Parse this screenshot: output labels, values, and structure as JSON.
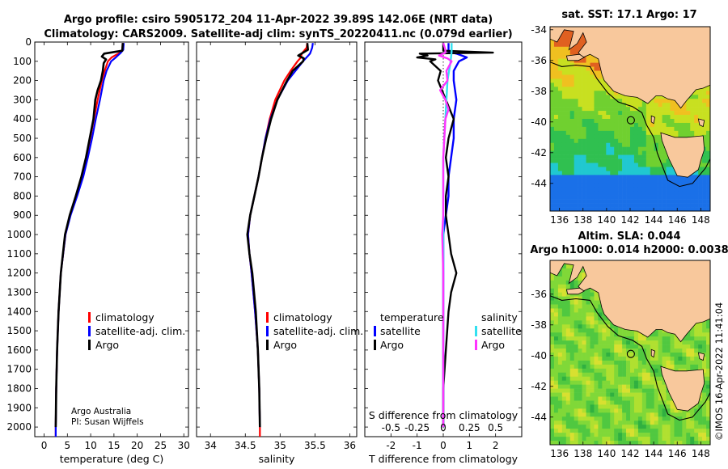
{
  "title_line1": "Argo profile: csiro 5905172_204 11-Apr-2022 39.89S 142.06E (NRT data)",
  "title_line2": "Climatology: CARS2009. Satellite-adj clim: synTS_20220411.nc (0.079d earlier)",
  "credit_line1": "Argo Australia",
  "credit_line2": "PI: Susan Wijffels",
  "watermark": "©IMOS 16-Apr-2022 11:41:04",
  "depth_ticks": [
    "0",
    "100",
    "200",
    "300",
    "400",
    "500",
    "600",
    "700",
    "800",
    "900",
    "1000",
    "1100",
    "1200",
    "1300",
    "1400",
    "1500",
    "1600",
    "1700",
    "1800",
    "1900",
    "2000"
  ],
  "colors": {
    "climatology": "#ff0000",
    "satellite": "#0000ff",
    "argo": "#000000",
    "sal_satellite": "#33e0f0",
    "sal_argo": "#ff33ff",
    "land": "#f8c89c"
  },
  "chart_data": [
    {
      "type": "line",
      "id": "temperature",
      "xlabel": "temperature (deg C)",
      "ylabel": "depth",
      "xlim": [
        -2,
        31
      ],
      "ylim": [
        2050,
        0
      ],
      "xticks": [
        0,
        5,
        10,
        15,
        20,
        25,
        30
      ],
      "xtick_labels": [
        "0",
        "5",
        "10",
        "15",
        "20",
        "25",
        "30"
      ],
      "legend": [
        "climatology",
        "satellite-adj. clim.",
        "Argo"
      ],
      "series": [
        {
          "name": "climatology",
          "depth": [
            5,
            40,
            55,
            80,
            100,
            150,
            200,
            300,
            400,
            500,
            600,
            700,
            800,
            900,
            1000,
            1200,
            1400,
            1600,
            1800,
            2000,
            2050
          ],
          "values": [
            16.9,
            16.8,
            16.3,
            14.5,
            13.7,
            13.0,
            12.4,
            11.5,
            10.7,
            9.9,
            9.1,
            8.2,
            6.9,
            5.6,
            4.6,
            3.6,
            3.1,
            2.8,
            2.6,
            2.5,
            2.5
          ]
        },
        {
          "name": "satellite-adj. clim.",
          "depth": [
            5,
            40,
            55,
            80,
            100,
            150,
            200,
            300,
            400,
            500,
            600,
            700,
            800,
            900,
            1000,
            1200,
            1400,
            1600,
            1800,
            2000,
            2050
          ],
          "values": [
            17.1,
            17.0,
            16.5,
            15.4,
            14.4,
            13.4,
            12.8,
            12.0,
            11.1,
            10.3,
            9.4,
            8.4,
            7.1,
            5.7,
            4.6,
            3.6,
            3.1,
            2.8,
            2.6,
            2.5,
            2.5
          ]
        },
        {
          "name": "Argo",
          "depth": [
            5,
            45,
            60,
            75,
            90,
            110,
            150,
            200,
            250,
            300,
            400,
            500,
            600,
            700,
            800,
            900,
            1000,
            1200,
            1400,
            1600,
            1800,
            2000
          ],
          "values": [
            16.9,
            16.8,
            12.9,
            12.4,
            13.3,
            12.8,
            12.6,
            12.2,
            11.5,
            11.0,
            10.6,
            9.8,
            9.0,
            8.0,
            6.8,
            5.5,
            4.5,
            3.6,
            3.1,
            2.8,
            2.6,
            2.5
          ]
        }
      ]
    },
    {
      "type": "line",
      "id": "salinity",
      "xlabel": "salinity",
      "ylabel": "depth",
      "xlim": [
        33.8,
        36.1
      ],
      "ylim": [
        2050,
        0
      ],
      "xticks": [
        34,
        34.5,
        35,
        35.5,
        36
      ],
      "xtick_labels": [
        "34",
        "34.5",
        "35",
        "35.5",
        "36"
      ],
      "legend": [
        "climatology",
        "satellite-adj. clim.",
        "Argo"
      ],
      "series": [
        {
          "name": "climatology",
          "depth": [
            5,
            30,
            60,
            80,
            100,
            150,
            200,
            300,
            400,
            500,
            600,
            700,
            800,
            900,
            1000,
            1100,
            1200,
            1400,
            1600,
            1800,
            2000,
            2050
          ],
          "values": [
            35.39,
            35.38,
            35.31,
            35.3,
            35.25,
            35.15,
            35.06,
            34.93,
            34.85,
            34.79,
            34.74,
            34.69,
            34.63,
            34.57,
            34.54,
            34.56,
            34.59,
            34.64,
            34.68,
            34.7,
            34.71,
            34.71
          ]
        },
        {
          "name": "satellite-adj. clim.",
          "depth": [
            5,
            30,
            60,
            80,
            100,
            150,
            200,
            300,
            400,
            500,
            600,
            700,
            800,
            900,
            1000,
            1100,
            1200,
            1400,
            1600,
            1800,
            2000
          ],
          "values": [
            35.47,
            35.46,
            35.43,
            35.38,
            35.33,
            35.22,
            35.11,
            34.96,
            34.86,
            34.79,
            34.74,
            34.69,
            34.63,
            34.57,
            34.54,
            34.56,
            34.59,
            34.64,
            34.68,
            34.7,
            34.71
          ]
        },
        {
          "name": "Argo",
          "depth": [
            5,
            40,
            55,
            70,
            85,
            100,
            150,
            200,
            300,
            400,
            500,
            600,
            700,
            800,
            900,
            1000,
            1100,
            1200,
            1400,
            1600,
            1800,
            2000
          ],
          "values": [
            35.39,
            35.4,
            35.33,
            35.26,
            35.34,
            35.33,
            35.18,
            35.1,
            34.96,
            34.87,
            34.8,
            34.74,
            34.69,
            34.63,
            34.57,
            34.53,
            34.56,
            34.6,
            34.65,
            34.68,
            34.7,
            34.71
          ]
        }
      ]
    },
    {
      "type": "line",
      "id": "differences",
      "xlabel": "T difference from climatology",
      "xlabel2": "S difference from climatology",
      "ylabel": "depth",
      "xlim": [
        -3,
        3
      ],
      "ylim": [
        2050,
        0
      ],
      "xticks": [
        -2,
        -1,
        0,
        1,
        2
      ],
      "xtick_labels": [
        "-2",
        "-1",
        "0",
        "1",
        "2"
      ],
      "s_ticks": [
        -0.5,
        -0.25,
        0,
        0.25,
        0.5
      ],
      "s_tick_labels": [
        "-0.5",
        "-0.25",
        "0",
        "0.25",
        "0.5"
      ],
      "legend_groups": [
        {
          "title": "temperature",
          "entries": [
            "satellite",
            "Argo"
          ]
        },
        {
          "title": "salinity",
          "entries": [
            "satellite",
            "Argo"
          ]
        }
      ],
      "series": [
        {
          "name": "T satellite",
          "depth": [
            5,
            50,
            60,
            80,
            100,
            150,
            200,
            300,
            400,
            500,
            600,
            700,
            800,
            900,
            1000,
            1200,
            1400,
            1600,
            1800,
            2000
          ],
          "values": [
            0.2,
            0.2,
            0.5,
            0.9,
            0.6,
            0.4,
            0.4,
            0.5,
            0.4,
            0.4,
            0.3,
            0.2,
            0.2,
            0.1,
            0.0,
            0.0,
            0.0,
            0.0,
            0.0,
            0.0
          ]
        },
        {
          "name": "T Argo",
          "depth": [
            5,
            45,
            55,
            60,
            70,
            80,
            90,
            100,
            150,
            200,
            300,
            400,
            500,
            600,
            700,
            800,
            900,
            1000,
            1100,
            1200,
            1300,
            1400,
            1600,
            1800,
            2000
          ],
          "values": [
            0.0,
            0.0,
            1.9,
            -0.9,
            -0.6,
            -1.0,
            -0.3,
            -0.5,
            -0.1,
            -0.2,
            0.1,
            0.4,
            0.2,
            0.1,
            0.2,
            0.1,
            0.1,
            0.2,
            0.3,
            0.5,
            0.3,
            0.2,
            0.1,
            0.0,
            0.0
          ]
        },
        {
          "name": "S satellite",
          "depth": [
            5,
            50,
            100,
            200,
            400,
            600,
            800,
            1000,
            1200,
            1400,
            1600,
            1800,
            2000
          ],
          "values": [
            0.08,
            0.08,
            0.07,
            0.04,
            0.02,
            0.0,
            0.0,
            0.0,
            0.0,
            0.0,
            0.0,
            0.0,
            0.0
          ]
        },
        {
          "name": "S Argo",
          "depth": [
            5,
            40,
            55,
            70,
            85,
            100,
            150,
            200,
            250,
            300,
            350,
            400,
            500,
            600,
            700,
            800,
            900,
            1000,
            1200,
            1400,
            1600,
            1800,
            2000
          ],
          "values": [
            0.0,
            0.02,
            0.02,
            -0.04,
            0.04,
            0.08,
            0.03,
            0.04,
            -0.03,
            0.02,
            0.05,
            0.02,
            0.01,
            0.0,
            0.0,
            0.0,
            0.0,
            -0.01,
            0.0,
            0.0,
            0.0,
            0.0,
            0.0
          ]
        }
      ]
    },
    {
      "type": "heatmap",
      "id": "sst_map",
      "title": "sat. SST: 17.1 Argo: 17",
      "xlim": [
        135.2,
        148.8
      ],
      "ylim": [
        -45.8,
        -33.8
      ],
      "xticks": [
        136,
        138,
        140,
        142,
        144,
        146,
        148
      ],
      "xtick_labels": [
        "136",
        "138",
        "140",
        "142",
        "144",
        "146",
        "148"
      ],
      "yticks": [
        -34,
        -36,
        -38,
        -40,
        -42,
        -44
      ],
      "ytick_labels": [
        "-34",
        "-36",
        "-38",
        "-40",
        "-42",
        "-44"
      ],
      "float_position": {
        "lon": 142.06,
        "lat": -39.89
      }
    },
    {
      "type": "heatmap",
      "id": "sla_map",
      "title": "Altim. SLA: 0.044",
      "subtitle": "Argo h1000: 0.014 h2000: 0.0038",
      "xlim": [
        135.2,
        148.8
      ],
      "ylim": [
        -45.8,
        -33.8
      ],
      "xticks": [
        136,
        138,
        140,
        142,
        144,
        146,
        148
      ],
      "xtick_labels": [
        "136",
        "138",
        "140",
        "142",
        "144",
        "146",
        "148"
      ],
      "yticks": [
        -36,
        -38,
        -40,
        -42,
        -44
      ],
      "ytick_labels": [
        "-36",
        "-38",
        "-40",
        "-42",
        "-44"
      ],
      "float_position": {
        "lon": 142.06,
        "lat": -39.89
      }
    }
  ]
}
